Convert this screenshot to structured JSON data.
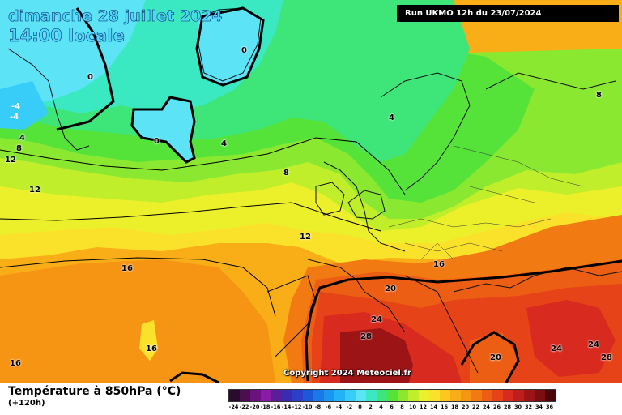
{
  "header": {
    "date_line": "dimanche 28 juillet 2024",
    "time_line": "14:00 locale",
    "run_info": "Run UKMO 12h du 23/07/2024"
  },
  "copyright": "Copyright 2024 Meteociel.fr",
  "legend": {
    "title": "Température à 850hPa (°C)",
    "subtitle": "(+120h)",
    "scale": [
      {
        "v": "-24",
        "c": "#2a0a2e"
      },
      {
        "v": "-22",
        "c": "#4b0f50"
      },
      {
        "v": "-20",
        "c": "#6b1280"
      },
      {
        "v": "-18",
        "c": "#8a1aa8"
      },
      {
        "v": "-16",
        "c": "#5a1e9a"
      },
      {
        "v": "-14",
        "c": "#3a2cb0"
      },
      {
        "v": "-12",
        "c": "#2b3fc8"
      },
      {
        "v": "-10",
        "c": "#1e58d8"
      },
      {
        "v": "-8",
        "c": "#1a78e8"
      },
      {
        "v": "-6",
        "c": "#1a96f0"
      },
      {
        "v": "-4",
        "c": "#22b2f5"
      },
      {
        "v": "-2",
        "c": "#38cdf8"
      },
      {
        "v": "0",
        "c": "#5ce3f6"
      },
      {
        "v": "2",
        "c": "#3ae8c2"
      },
      {
        "v": "4",
        "c": "#3ee67a"
      },
      {
        "v": "6",
        "c": "#55e33a"
      },
      {
        "v": "8",
        "c": "#8ae830"
      },
      {
        "v": "10",
        "c": "#c0ee2a"
      },
      {
        "v": "12",
        "c": "#ecf02a"
      },
      {
        "v": "14",
        "c": "#fbe22a"
      },
      {
        "v": "16",
        "c": "#fcc820"
      },
      {
        "v": "18",
        "c": "#f9ae18"
      },
      {
        "v": "20",
        "c": "#f69414"
      },
      {
        "v": "22",
        "c": "#f27a12"
      },
      {
        "v": "24",
        "c": "#ec5e14"
      },
      {
        "v": "26",
        "c": "#e64318"
      },
      {
        "v": "28",
        "c": "#d82a1e"
      },
      {
        "v": "30",
        "c": "#bf1c1c"
      },
      {
        "v": "32",
        "c": "#9c1416"
      },
      {
        "v": "34",
        "c": "#7a0e10"
      },
      {
        "v": "36",
        "c": "#4d070a"
      }
    ]
  },
  "contour_labels": [
    "0",
    "0",
    "0",
    "-4",
    "-4",
    "4",
    "4",
    "4",
    "8",
    "8",
    "12",
    "12",
    "12",
    "16",
    "16",
    "16",
    "16",
    "20",
    "20",
    "24",
    "24",
    "24",
    "28",
    "28",
    "8"
  ],
  "colors": {
    "ocean_warm": "#f69414",
    "contour": "#000000",
    "coast": "#111111"
  }
}
